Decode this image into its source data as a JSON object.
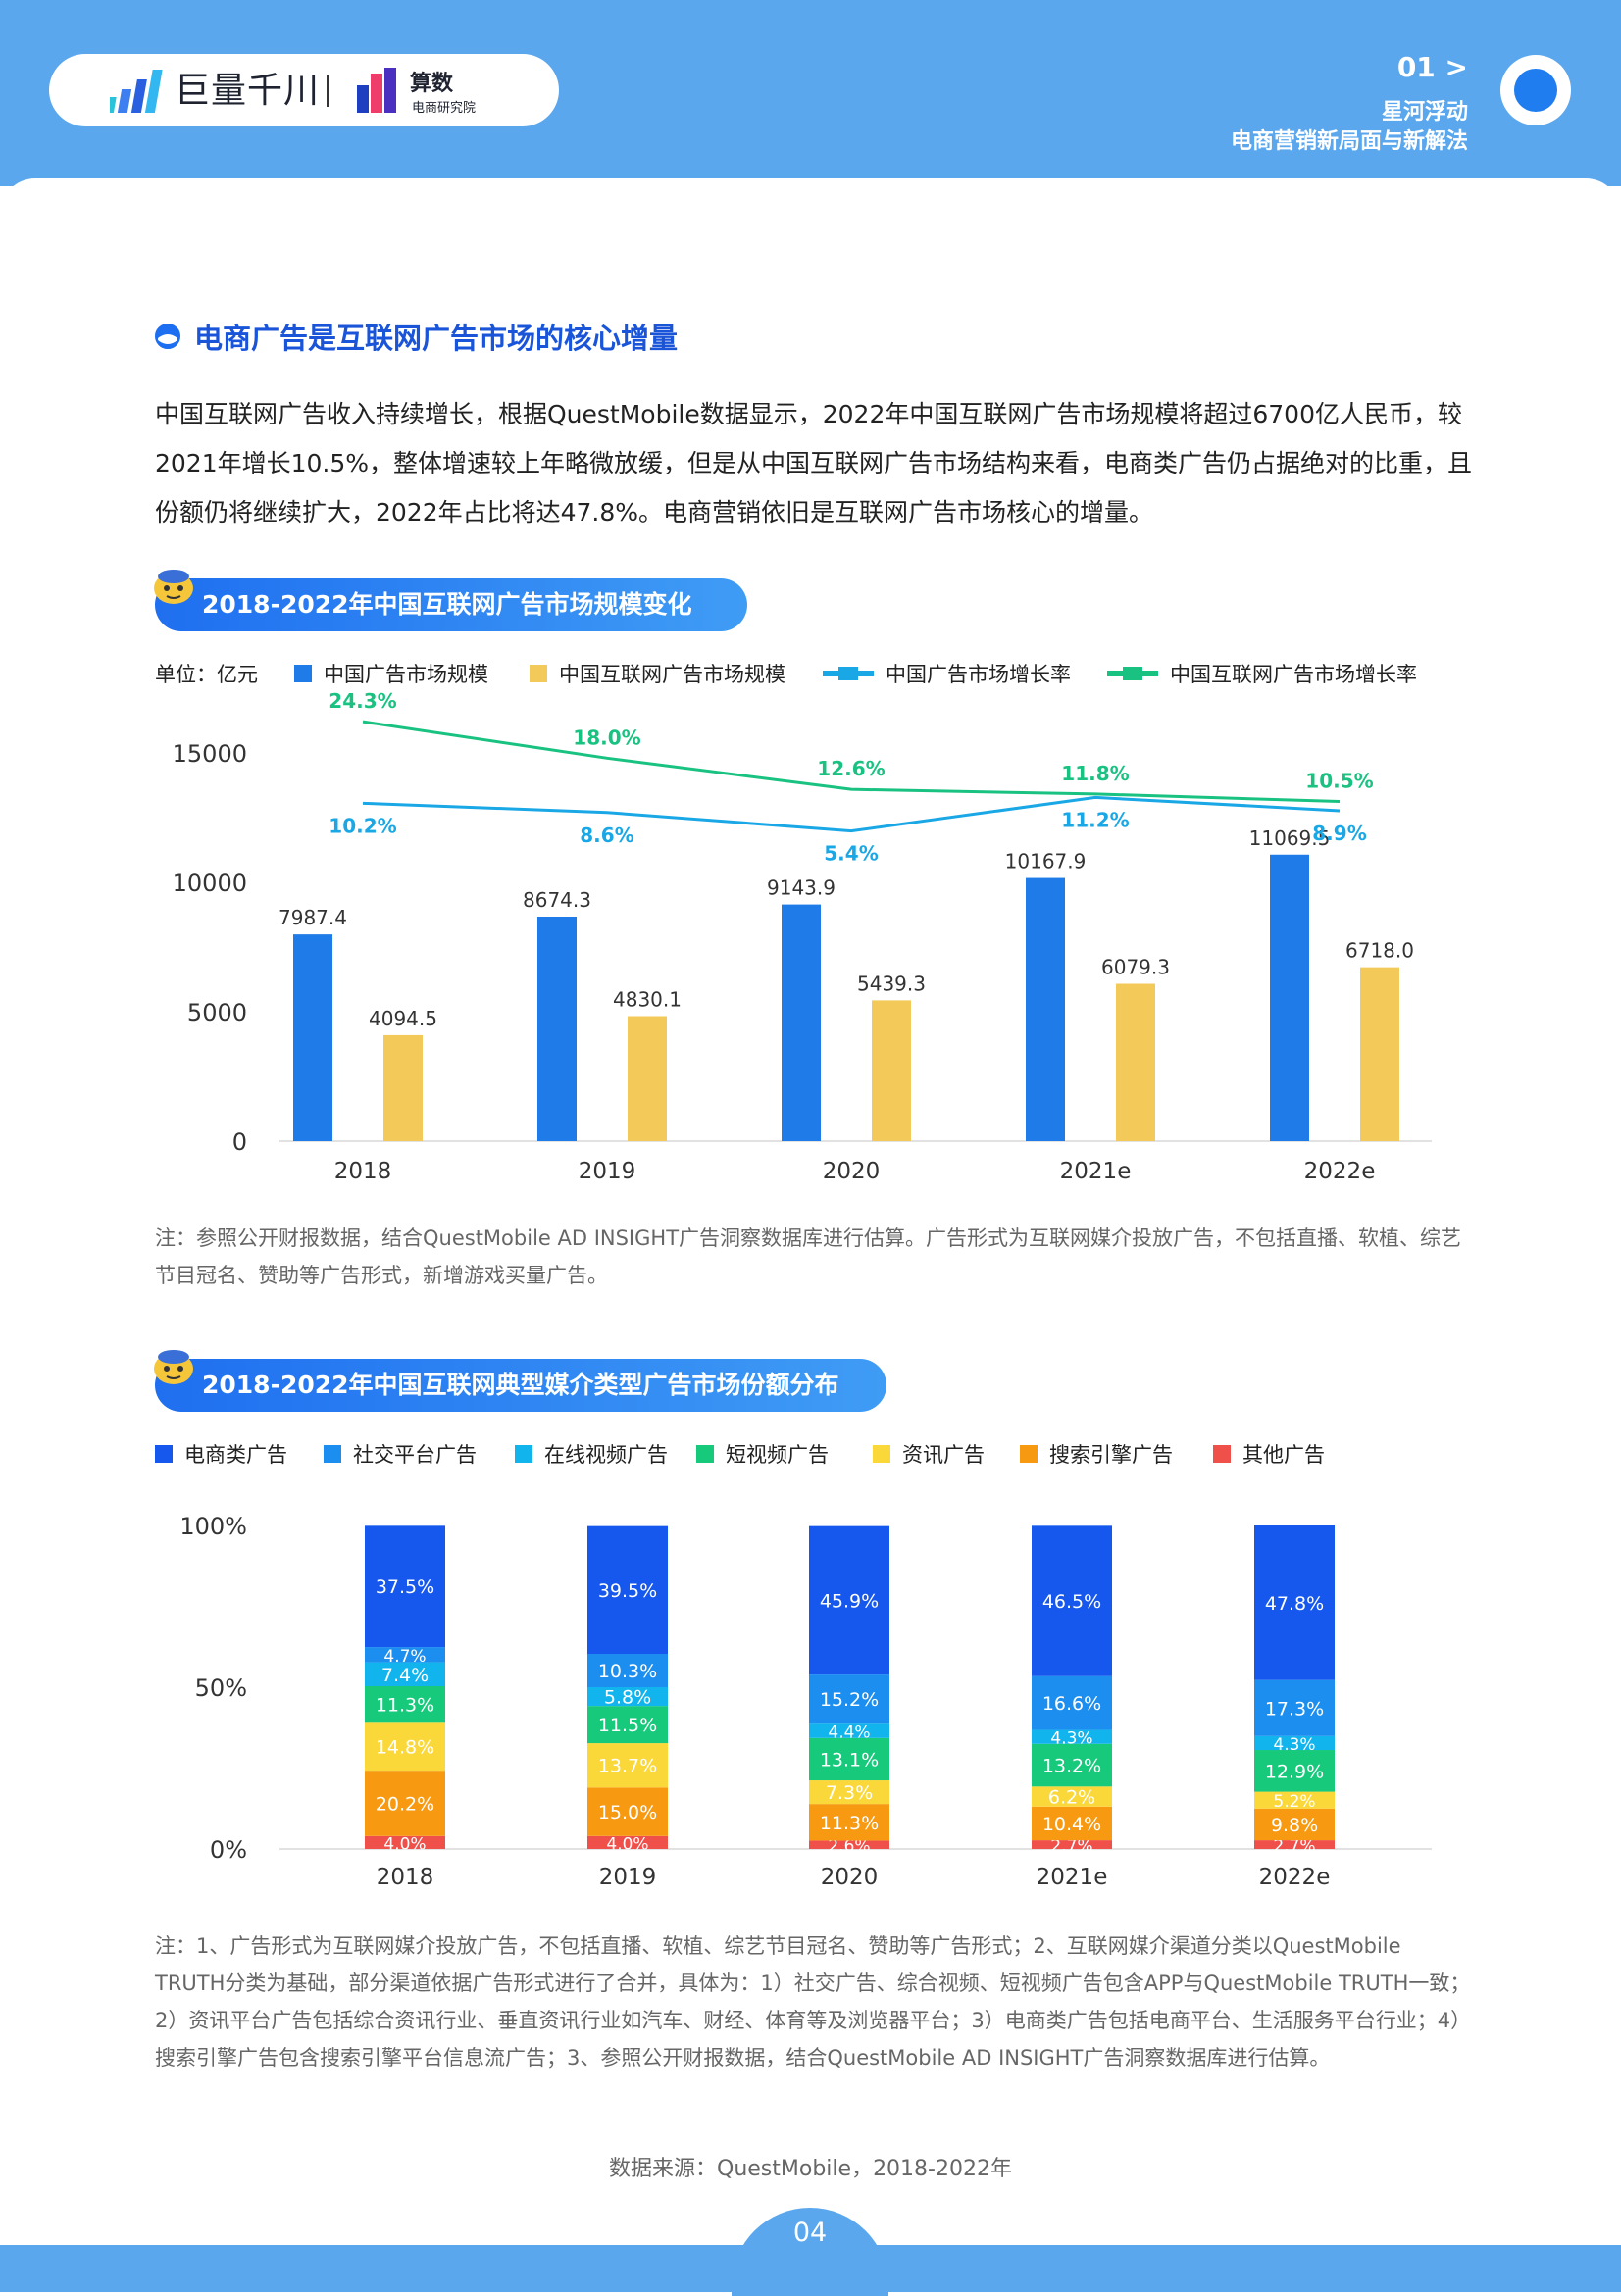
{
  "header": {
    "brand1": "巨量千川",
    "brand2_title": "算数",
    "brand2_sub": "电商研究院",
    "page_marker": "01 >",
    "section_line1": "星河浮动",
    "section_line2": "电商营销新局面与新解法"
  },
  "section": {
    "title": "电商广告是互联网广告市场的核心增量",
    "paragraph": "中国互联网广告收入持续增长，根据QuestMobile数据显示，2022年中国互联网广告市场规模将超过6700亿人民币，较2021年增长10.5%，整体增速较上年略微放缓，但是从中国互联网广告市场结构来看，电商类广告仍占据绝对的比重，且份额仍将继续扩大，2022年占比将达47.8%。电商营销依旧是互联网广告市场核心的增量。"
  },
  "chart_data": [
    {
      "type": "bar",
      "title": "2018-2022年中国互联网广告市场规模变化",
      "unit_label": "单位：亿元",
      "categories": [
        "2018",
        "2019",
        "2020",
        "2021e",
        "2022e"
      ],
      "ylim": [
        0,
        15000
      ],
      "yticks": [
        "0",
        "5000",
        "10000",
        "15000"
      ],
      "grid": false,
      "legend_position": "top",
      "series": [
        {
          "name": "中国广告市场规模",
          "kind": "bar",
          "color": "#1f7be8",
          "values": [
            7987.4,
            8674.3,
            9143.9,
            10167.9,
            11069.5
          ],
          "labels": [
            "7987.4",
            "8674.3",
            "9143.9",
            "10167.9",
            "11069.5"
          ]
        },
        {
          "name": "中国互联网广告市场规模",
          "kind": "bar",
          "color": "#f3c95a",
          "values": [
            4094.5,
            4830.1,
            5439.3,
            6079.3,
            6718.0
          ],
          "labels": [
            "4094.5",
            "4830.1",
            "5439.3",
            "6079.3",
            "6718.0"
          ]
        },
        {
          "name": "中国广告市场增长率",
          "kind": "line",
          "color": "#19a7e6",
          "values": [
            10.2,
            8.6,
            5.4,
            11.2,
            8.9
          ],
          "labels": [
            "10.2%",
            "8.6%",
            "5.4%",
            "11.2%",
            "8.9%"
          ]
        },
        {
          "name": "中国互联网广告市场增长率",
          "kind": "line",
          "color": "#19c280",
          "values": [
            24.3,
            18.0,
            12.6,
            11.8,
            10.5
          ],
          "labels": [
            "24.3%",
            "18.0%",
            "12.6%",
            "11.8%",
            "10.5%"
          ]
        }
      ]
    },
    {
      "type": "bar",
      "stacked": true,
      "title": "2018-2022年中国互联网典型媒介类型广告市场份额分布",
      "categories": [
        "2018",
        "2019",
        "2020",
        "2021e",
        "2022e"
      ],
      "ylim": [
        0,
        100
      ],
      "yticks": [
        "0%",
        "50%",
        "100%"
      ],
      "grid": false,
      "legend_position": "top",
      "series": [
        {
          "name": "其他广告",
          "color": "#f0504a",
          "values": [
            4.0,
            4.0,
            2.6,
            2.7,
            2.7
          ],
          "labels": [
            "4.0%",
            "4.0%",
            "2.6%",
            "2.7%",
            "2.7%"
          ]
        },
        {
          "name": "搜索引擎广告",
          "color": "#f79a12",
          "values": [
            20.2,
            15.0,
            11.3,
            10.4,
            9.8
          ],
          "labels": [
            "20.2%",
            "15.0%",
            "11.3%",
            "10.4%",
            "9.8%"
          ]
        },
        {
          "name": "资讯广告",
          "color": "#fbd83a",
          "values": [
            14.8,
            13.7,
            7.3,
            6.2,
            5.2
          ],
          "labels": [
            "14.8%",
            "13.7%",
            "7.3%",
            "6.2%",
            "5.2%"
          ]
        },
        {
          "name": "短视频广告",
          "color": "#17c97b",
          "values": [
            11.3,
            11.5,
            13.1,
            13.2,
            12.9
          ],
          "labels": [
            "11.3%",
            "11.5%",
            "13.1%",
            "13.2%",
            "12.9%"
          ]
        },
        {
          "name": "在线视频广告",
          "color": "#12b4ee",
          "values": [
            7.4,
            5.8,
            4.4,
            4.3,
            4.3
          ],
          "labels": [
            "7.4%",
            "5.8%",
            "4.4%",
            "4.3%",
            "4.3%"
          ]
        },
        {
          "name": "社交平台广告",
          "color": "#1c8ef0",
          "values": [
            4.7,
            10.3,
            15.2,
            16.6,
            17.3
          ],
          "labels": [
            "4.7%",
            "10.3%",
            "15.2%",
            "16.6%",
            "17.3%"
          ]
        },
        {
          "name": "电商类广告",
          "color": "#1658ee",
          "values": [
            37.5,
            39.5,
            45.9,
            46.5,
            47.8
          ],
          "labels": [
            "37.5%",
            "39.5%",
            "45.9%",
            "46.5%",
            "47.8%"
          ]
        }
      ],
      "legend_order": [
        "电商类广告",
        "社交平台广告",
        "在线视频广告",
        "短视频广告",
        "资讯广告",
        "搜索引擎广告",
        "其他广告"
      ]
    }
  ],
  "notes": {
    "chart1": "注：参照公开财报数据，结合QuestMobile AD INSIGHT广告洞察数据库进行估算。广告形式为互联网媒介投放广告，不包括直播、软植、综艺节目冠名、赞助等广告形式，新增游戏买量广告。",
    "chart2": "注：1、广告形式为互联网媒介投放广告，不包括直播、软植、综艺节目冠名、赞助等广告形式；2、互联网媒介渠道分类以QuestMobile TRUTH分类为基础，部分渠道依据广告形式进行了合并，具体为：1）社交广告、综合视频、短视频广告包含APP与QuestMobile TRUTH一致；2）资讯平台广告包括综合资讯行业、垂直资讯行业如汽车、财经、体育等及浏览器平台；3）电商类广告包括电商平台、生活服务平台行业；4）搜索引擎广告包含搜索引擎平台信息流广告；3、参照公开财报数据，结合QuestMobile AD INSIGHT广告洞察数据库进行估算。"
  },
  "source": "数据来源：QuestMobile，2018-2022年",
  "page_number": "04"
}
